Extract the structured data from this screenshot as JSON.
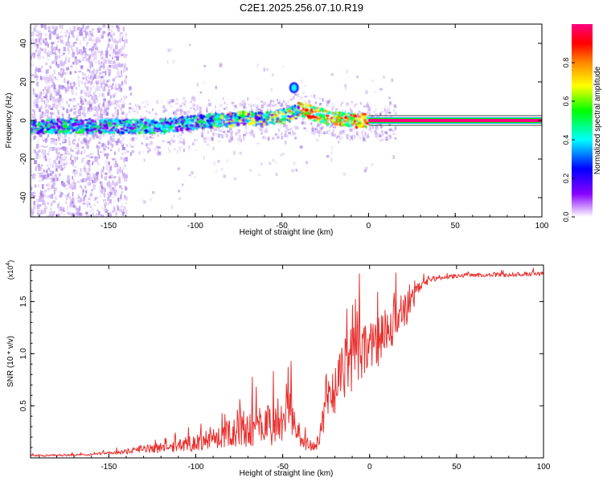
{
  "title": "C2E1.2025.256.07.10.R19",
  "chart_data": [
    {
      "type": "heatmap",
      "title": "C2E1.2025.256.07.10.R19",
      "xlabel": "Height of straight line (km)",
      "ylabel": "Frequency (Hz)",
      "xlim": [
        -195,
        100
      ],
      "ylim": [
        -50,
        50
      ],
      "x_ticks": [
        -150,
        -100,
        -50,
        0,
        50,
        100
      ],
      "x_tick_labels": [
        "-150",
        "-100",
        "-50",
        "0",
        "50",
        "100"
      ],
      "y_ticks": [
        -40,
        -20,
        0,
        20,
        40
      ],
      "y_tick_labels": [
        "-40",
        "-20",
        "0",
        "20",
        "40"
      ],
      "ridge": {
        "x": [
          -195,
          -170,
          -150,
          -140,
          -130,
          -120,
          -110,
          -100,
          -90,
          -80,
          -70,
          -60,
          -50,
          -45,
          -40,
          -35,
          -30,
          -25,
          -20,
          -15,
          -10,
          -5,
          0,
          50,
          100
        ],
        "y": [
          -3,
          -3,
          -3,
          -3,
          -3,
          -3,
          -2,
          -1,
          0,
          0,
          1,
          1,
          2,
          3,
          6,
          5,
          3,
          2,
          1,
          0.5,
          0,
          0,
          0,
          0,
          0
        ]
      },
      "spike": {
        "x": -43,
        "y": 17
      },
      "colorbar": {
        "label": "Normalized spectral amplitude",
        "range": [
          0,
          1
        ],
        "ticks": [
          0.0,
          0.2,
          0.4,
          0.6,
          0.8
        ],
        "tick_labels": [
          "0.0",
          "0.2",
          "0.4",
          "0.6",
          "0.8"
        ],
        "colors": [
          "#ffffff",
          "#8800ff",
          "#0000ff",
          "#00ffff",
          "#00ff00",
          "#ffff00",
          "#ff8800",
          "#ff0000",
          "#ff0080"
        ]
      }
    },
    {
      "type": "line",
      "xlabel": "Height of straight line (km)",
      "ylabel": "SNR (10 * v/v)",
      "scale_label": "(x10",
      "scale_exponent": "4",
      "scale_suffix": ")",
      "xlim": [
        -195,
        100
      ],
      "ylim": [
        0,
        1.85
      ],
      "x_ticks": [
        -150,
        -100,
        -50,
        0,
        50,
        100
      ],
      "x_tick_labels": [
        "-150",
        "-100",
        "-50",
        "0",
        "50",
        "100"
      ],
      "y_ticks": [
        0.5,
        1.0,
        1.5
      ],
      "y_tick_labels": [
        "0.5",
        "1.0",
        "1.5"
      ],
      "color": "#e8312f",
      "series": [
        {
          "name": "SNR",
          "x": [
            -195,
            -180,
            -160,
            -140,
            -130,
            -120,
            -110,
            -100,
            -90,
            -80,
            -75,
            -70,
            -60,
            -50,
            -45,
            -40,
            -35,
            -30,
            -28,
            -25,
            -20,
            -15,
            -10,
            -5,
            0,
            5,
            10,
            15,
            20,
            25,
            30,
            35,
            40,
            50,
            60,
            70,
            80,
            90,
            100
          ],
          "y": [
            0.02,
            0.02,
            0.03,
            0.05,
            0.08,
            0.08,
            0.1,
            0.12,
            0.15,
            0.2,
            0.22,
            0.25,
            0.25,
            0.28,
            0.35,
            0.15,
            0.1,
            0.12,
            0.2,
            0.5,
            0.6,
            0.8,
            0.85,
            0.95,
            1.0,
            1.05,
            1.15,
            1.25,
            1.35,
            1.5,
            1.65,
            1.7,
            1.72,
            1.74,
            1.75,
            1.75,
            1.75,
            1.76,
            1.76
          ],
          "noise": [
            0.01,
            0.01,
            0.01,
            0.02,
            0.04,
            0.05,
            0.06,
            0.08,
            0.1,
            0.15,
            0.2,
            0.2,
            0.2,
            0.2,
            0.25,
            0.08,
            0.05,
            0.06,
            0.12,
            0.25,
            0.3,
            0.35,
            0.35,
            0.3,
            0.25,
            0.25,
            0.25,
            0.22,
            0.18,
            0.1,
            0.04,
            0.03,
            0.02,
            0.02,
            0.02,
            0.02,
            0.02,
            0.02,
            0.02
          ]
        }
      ]
    }
  ]
}
